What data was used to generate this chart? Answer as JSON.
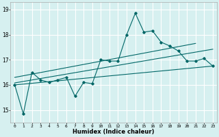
{
  "xlabel": "Humidex (Indice chaleur)",
  "background_color": "#d6f0f0",
  "grid_color": "#ffffff",
  "line_color": "#006666",
  "xlim": [
    -0.5,
    23.5
  ],
  "ylim": [
    14.5,
    19.3
  ],
  "yticks": [
    15,
    16,
    17,
    18,
    19
  ],
  "xticks": [
    0,
    1,
    2,
    3,
    4,
    5,
    6,
    7,
    8,
    9,
    10,
    11,
    12,
    13,
    14,
    15,
    16,
    17,
    18,
    19,
    20,
    21,
    22,
    23
  ],
  "zigzag_y": [
    16.0,
    14.85,
    16.5,
    16.2,
    16.1,
    16.2,
    16.3,
    15.55,
    16.1,
    16.05,
    17.0,
    16.95,
    16.95,
    18.0,
    18.85,
    18.1,
    18.15,
    17.7,
    17.55,
    17.35,
    16.95,
    16.95,
    17.05,
    16.75
  ],
  "trend1_x": [
    0,
    23
  ],
  "trend1_y": [
    16.0,
    16.75
  ],
  "trend2_x": [
    0,
    21
  ],
  "trend2_y": [
    16.3,
    17.65
  ],
  "trend3_x": [
    0,
    23
  ],
  "trend3_y": [
    16.08,
    17.42
  ]
}
